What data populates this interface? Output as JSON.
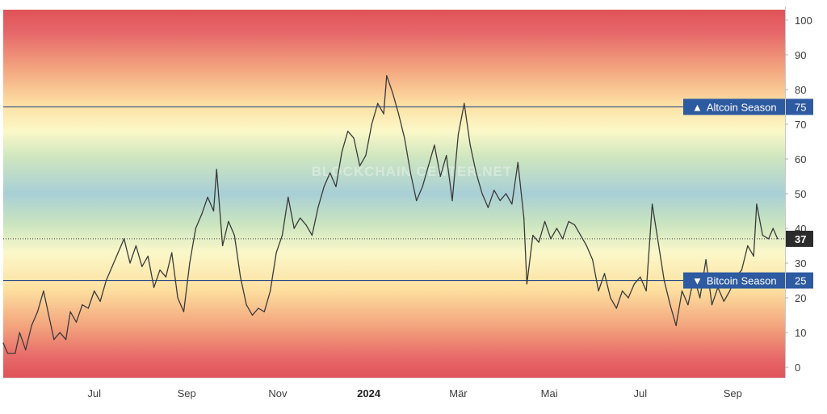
{
  "chart_data": {
    "type": "line",
    "title": "",
    "watermark": "BLOCKCHAIN CENTER.NET",
    "xlabel": "",
    "ylabel": "",
    "ylim": [
      -3,
      103
    ],
    "grid": false,
    "x_ticks": [
      {
        "label": "Jul",
        "x": "2023-07-01"
      },
      {
        "label": "Sep",
        "x": "2023-09-01"
      },
      {
        "label": "Nov",
        "x": "2023-11-01"
      },
      {
        "label": "2024",
        "x": "2024-01-01"
      },
      {
        "label": "Mär",
        "x": "2024-03-01"
      },
      {
        "label": "Mai",
        "x": "2024-05-01"
      },
      {
        "label": "Jul",
        "x": "2024-07-01"
      },
      {
        "label": "Sep",
        "x": "2024-09-01"
      }
    ],
    "y_ticks": [
      "0",
      "10",
      "20",
      "30",
      "40",
      "50",
      "60",
      "70",
      "80",
      "90",
      "100"
    ],
    "thresholds": [
      {
        "label": "Altcoin Season",
        "symbol": "▲",
        "value": 75,
        "value_label": "75"
      },
      {
        "label": "Bitcoin Season",
        "symbol": "▼",
        "value": 25,
        "value_label": "25"
      }
    ],
    "current": {
      "value": 37,
      "label": "37"
    },
    "series": [
      {
        "color": "#3a3a3a",
        "points": [
          [
            "2023-05-01",
            7
          ],
          [
            "2023-05-04",
            4
          ],
          [
            "2023-05-09",
            4
          ],
          [
            "2023-05-12",
            10
          ],
          [
            "2023-05-16",
            5
          ],
          [
            "2023-05-20",
            12
          ],
          [
            "2023-05-24",
            16
          ],
          [
            "2023-05-28",
            22
          ],
          [
            "2023-06-01",
            14
          ],
          [
            "2023-06-04",
            8
          ],
          [
            "2023-06-08",
            10
          ],
          [
            "2023-06-12",
            8
          ],
          [
            "2023-06-15",
            16
          ],
          [
            "2023-06-19",
            13
          ],
          [
            "2023-06-23",
            18
          ],
          [
            "2023-06-27",
            17
          ],
          [
            "2023-07-01",
            22
          ],
          [
            "2023-07-05",
            19
          ],
          [
            "2023-07-09",
            25
          ],
          [
            "2023-07-13",
            29
          ],
          [
            "2023-07-17",
            33
          ],
          [
            "2023-07-21",
            37
          ],
          [
            "2023-07-25",
            30
          ],
          [
            "2023-07-29",
            35
          ],
          [
            "2023-08-02",
            29
          ],
          [
            "2023-08-06",
            32
          ],
          [
            "2023-08-10",
            23
          ],
          [
            "2023-08-14",
            28
          ],
          [
            "2023-08-18",
            26
          ],
          [
            "2023-08-22",
            33
          ],
          [
            "2023-08-26",
            20
          ],
          [
            "2023-08-30",
            16
          ],
          [
            "2023-09-03",
            30
          ],
          [
            "2023-09-07",
            40
          ],
          [
            "2023-09-11",
            44
          ],
          [
            "2023-09-15",
            49
          ],
          [
            "2023-09-19",
            45
          ],
          [
            "2023-09-21",
            57
          ],
          [
            "2023-09-25",
            35
          ],
          [
            "2023-09-29",
            42
          ],
          [
            "2023-10-03",
            38
          ],
          [
            "2023-10-07",
            26
          ],
          [
            "2023-10-11",
            18
          ],
          [
            "2023-10-15",
            15
          ],
          [
            "2023-10-19",
            17
          ],
          [
            "2023-10-23",
            16
          ],
          [
            "2023-10-27",
            22
          ],
          [
            "2023-10-31",
            33
          ],
          [
            "2023-11-04",
            38
          ],
          [
            "2023-11-08",
            49
          ],
          [
            "2023-11-12",
            40
          ],
          [
            "2023-11-16",
            43
          ],
          [
            "2023-11-20",
            41
          ],
          [
            "2023-11-24",
            38
          ],
          [
            "2023-11-28",
            46
          ],
          [
            "2023-12-02",
            52
          ],
          [
            "2023-12-06",
            56
          ],
          [
            "2023-12-10",
            52
          ],
          [
            "2023-12-14",
            62
          ],
          [
            "2023-12-18",
            68
          ],
          [
            "2023-12-22",
            66
          ],
          [
            "2023-12-26",
            58
          ],
          [
            "2023-12-30",
            61
          ],
          [
            "2024-01-03",
            70
          ],
          [
            "2024-01-07",
            76
          ],
          [
            "2024-01-11",
            73
          ],
          [
            "2024-01-13",
            84
          ],
          [
            "2024-01-17",
            79
          ],
          [
            "2024-01-21",
            73
          ],
          [
            "2024-01-25",
            66
          ],
          [
            "2024-01-29",
            56
          ],
          [
            "2024-02-02",
            48
          ],
          [
            "2024-02-06",
            52
          ],
          [
            "2024-02-10",
            58
          ],
          [
            "2024-02-14",
            64
          ],
          [
            "2024-02-18",
            55
          ],
          [
            "2024-02-22",
            61
          ],
          [
            "2024-02-26",
            48
          ],
          [
            "2024-03-01",
            67
          ],
          [
            "2024-03-05",
            76
          ],
          [
            "2024-03-09",
            64
          ],
          [
            "2024-03-13",
            56
          ],
          [
            "2024-03-17",
            50
          ],
          [
            "2024-03-21",
            46
          ],
          [
            "2024-03-25",
            51
          ],
          [
            "2024-03-29",
            48
          ],
          [
            "2024-04-02",
            50
          ],
          [
            "2024-04-06",
            47
          ],
          [
            "2024-04-10",
            59
          ],
          [
            "2024-04-14",
            43
          ],
          [
            "2024-04-16",
            24
          ],
          [
            "2024-04-20",
            38
          ],
          [
            "2024-04-24",
            36
          ],
          [
            "2024-04-28",
            42
          ],
          [
            "2024-05-02",
            37
          ],
          [
            "2024-05-06",
            40
          ],
          [
            "2024-05-10",
            37
          ],
          [
            "2024-05-14",
            42
          ],
          [
            "2024-05-18",
            41
          ],
          [
            "2024-05-22",
            38
          ],
          [
            "2024-05-26",
            35
          ],
          [
            "2024-05-30",
            31
          ],
          [
            "2024-06-03",
            22
          ],
          [
            "2024-06-07",
            27
          ],
          [
            "2024-06-11",
            20
          ],
          [
            "2024-06-15",
            17
          ],
          [
            "2024-06-19",
            22
          ],
          [
            "2024-06-23",
            20
          ],
          [
            "2024-06-27",
            24
          ],
          [
            "2024-07-01",
            26
          ],
          [
            "2024-07-05",
            22
          ],
          [
            "2024-07-09",
            47
          ],
          [
            "2024-07-13",
            36
          ],
          [
            "2024-07-17",
            25
          ],
          [
            "2024-07-21",
            18
          ],
          [
            "2024-07-25",
            12
          ],
          [
            "2024-07-29",
            22
          ],
          [
            "2024-08-02",
            18
          ],
          [
            "2024-08-06",
            26
          ],
          [
            "2024-08-10",
            20
          ],
          [
            "2024-08-14",
            31
          ],
          [
            "2024-08-18",
            18
          ],
          [
            "2024-08-22",
            23
          ],
          [
            "2024-08-26",
            19
          ],
          [
            "2024-08-30",
            22
          ],
          [
            "2024-09-03",
            26
          ],
          [
            "2024-09-07",
            28
          ],
          [
            "2024-09-11",
            35
          ],
          [
            "2024-09-15",
            32
          ],
          [
            "2024-09-17",
            47
          ],
          [
            "2024-09-21",
            38
          ],
          [
            "2024-09-25",
            37
          ],
          [
            "2024-09-28",
            40
          ],
          [
            "2024-10-01",
            37
          ]
        ]
      }
    ]
  }
}
